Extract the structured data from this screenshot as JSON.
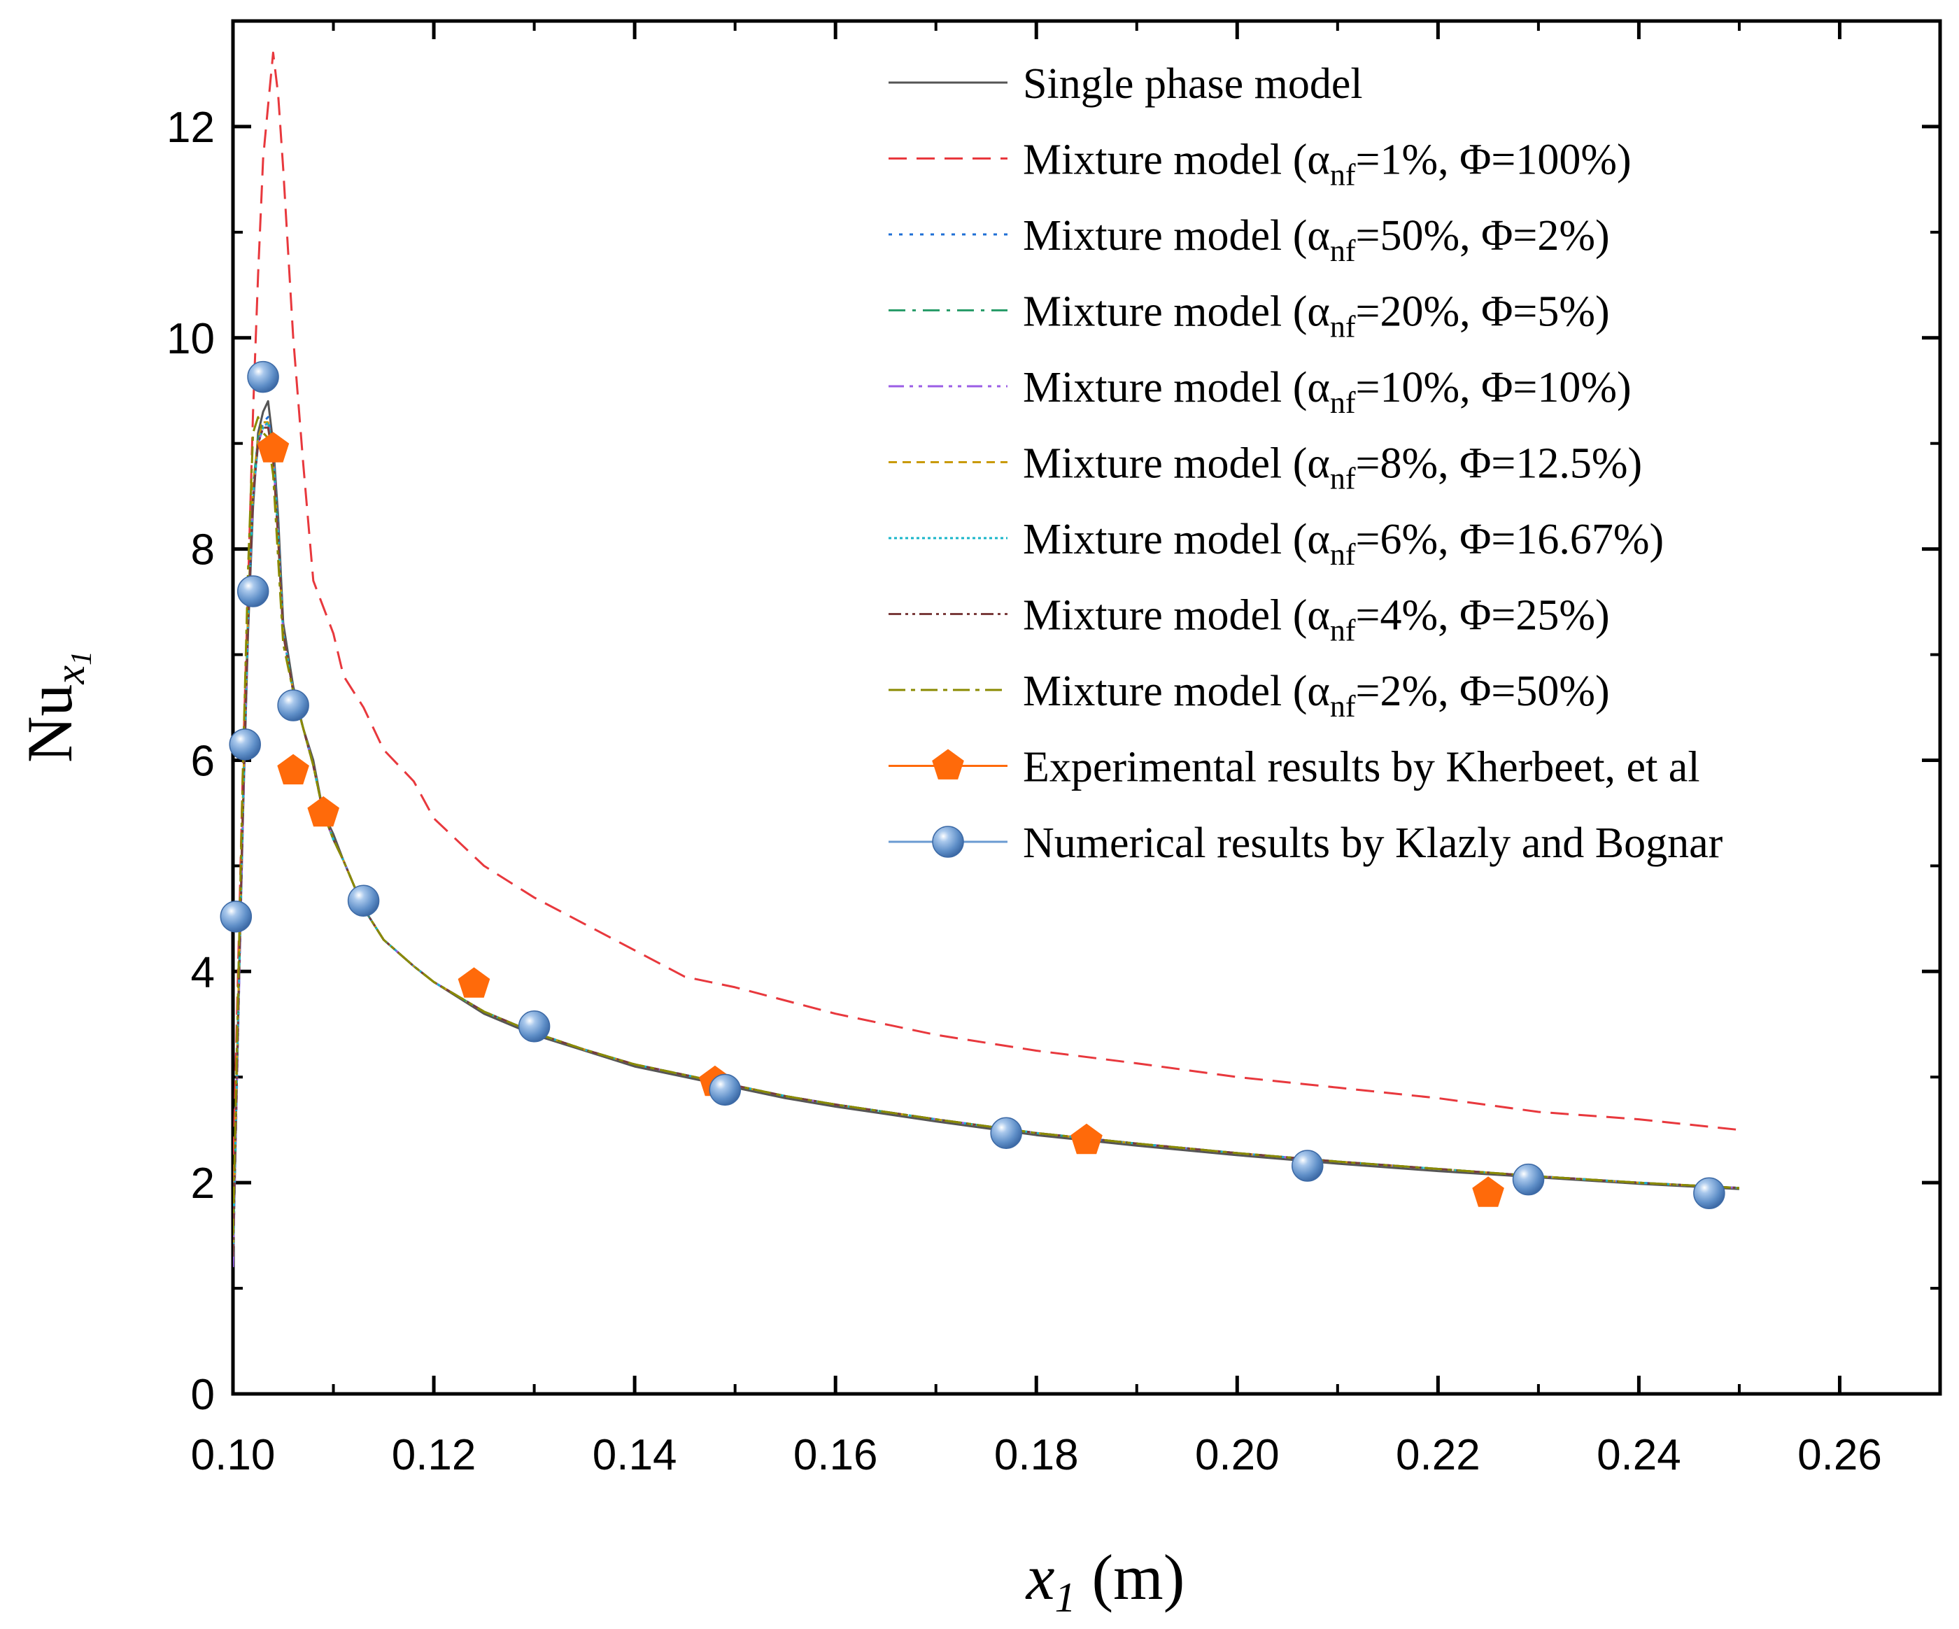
{
  "chart_data": {
    "type": "line",
    "title": "",
    "xlabel": {
      "main": "x",
      "sub": "1",
      "unit": " (m)"
    },
    "ylabel": {
      "main": "Nu",
      "sub": "x",
      "subsub": "1"
    },
    "xlim": [
      0.1,
      0.27
    ],
    "ylim": [
      0,
      13
    ],
    "x_ticks": [
      0.1,
      0.12,
      0.14,
      0.16,
      0.18,
      0.2,
      0.22,
      0.24,
      0.26
    ],
    "x_tick_labels": [
      "0.10",
      "0.12",
      "0.14",
      "0.16",
      "0.18",
      "0.20",
      "0.22",
      "0.24",
      "0.26"
    ],
    "y_ticks": [
      0,
      2,
      4,
      6,
      8,
      10,
      12
    ],
    "y_tick_labels": [
      "0",
      "2",
      "4",
      "6",
      "8",
      "10",
      "12"
    ],
    "legend_position": "top-right",
    "series": [
      {
        "name": "Single phase model",
        "color": "#555555",
        "dash": "",
        "marker": "none",
        "label": {
          "pre": "Single phase model",
          "sub": "",
          "post": ""
        },
        "x": [
          0.1,
          0.1005,
          0.101,
          0.1015,
          0.102,
          0.1025,
          0.103,
          0.1035,
          0.104,
          0.1045,
          0.105,
          0.106,
          0.107,
          0.108,
          0.109,
          0.11,
          0.111,
          0.113,
          0.115,
          0.118,
          0.12,
          0.125,
          0.13,
          0.135,
          0.14,
          0.145,
          0.15,
          0.155,
          0.16,
          0.17,
          0.18,
          0.19,
          0.2,
          0.21,
          0.22,
          0.23,
          0.24,
          0.25
        ],
        "y": [
          1.3,
          3.5,
          5.5,
          7.2,
          8.4,
          9.1,
          9.3,
          9.4,
          9.0,
          8.3,
          7.3,
          6.7,
          6.3,
          6.0,
          5.5,
          5.3,
          5.05,
          4.6,
          4.3,
          4.05,
          3.9,
          3.6,
          3.4,
          3.25,
          3.1,
          3.0,
          2.9,
          2.8,
          2.72,
          2.58,
          2.45,
          2.35,
          2.26,
          2.18,
          2.11,
          2.05,
          1.99,
          1.94
        ]
      },
      {
        "name": "Mixture model (αnf=1%, Φ=100%)",
        "color": "#e8383d",
        "dash": "26 14",
        "marker": "none",
        "label": {
          "pre": "Mixture model (α",
          "sub": "nf",
          "post": "=1%, Φ=100%)"
        },
        "x": [
          0.1,
          0.101,
          0.102,
          0.1025,
          0.103,
          0.1035,
          0.104,
          0.1045,
          0.105,
          0.106,
          0.107,
          0.108,
          0.11,
          0.111,
          0.113,
          0.115,
          0.118,
          0.12,
          0.125,
          0.13,
          0.135,
          0.14,
          0.145,
          0.15,
          0.16,
          0.17,
          0.18,
          0.19,
          0.2,
          0.21,
          0.22,
          0.23,
          0.24,
          0.25
        ],
        "y": [
          2.0,
          6.0,
          9.3,
          10.6,
          11.7,
          12.2,
          12.7,
          12.3,
          11.6,
          10.0,
          8.8,
          7.7,
          7.2,
          6.8,
          6.5,
          6.1,
          5.8,
          5.45,
          5.0,
          4.7,
          4.45,
          4.2,
          3.95,
          3.85,
          3.6,
          3.4,
          3.25,
          3.13,
          3.0,
          2.9,
          2.8,
          2.67,
          2.6,
          2.5
        ]
      },
      {
        "name": "Mixture model (αnf=50%, Φ=2%)",
        "color": "#1f6fd6",
        "dash": "5 10",
        "marker": "none",
        "label": {
          "pre": "Mixture model (α",
          "sub": "nf",
          "post": "=50%, Φ=2%)"
        },
        "x": [
          0.1,
          0.1005,
          0.101,
          0.1015,
          0.102,
          0.1025,
          0.103,
          0.1035,
          0.104,
          0.1045,
          0.105,
          0.106,
          0.107,
          0.108,
          0.109,
          0.11,
          0.111,
          0.113,
          0.115,
          0.118,
          0.12,
          0.125,
          0.13,
          0.135,
          0.14,
          0.145,
          0.15,
          0.155,
          0.16,
          0.17,
          0.18,
          0.19,
          0.2,
          0.21,
          0.22,
          0.23,
          0.24,
          0.25
        ],
        "y": [
          1.2,
          3.4,
          5.5,
          7.3,
          8.5,
          9.0,
          9.2,
          9.25,
          8.95,
          8.2,
          7.2,
          6.65,
          6.3,
          5.95,
          5.5,
          5.25,
          5.05,
          4.6,
          4.3,
          4.05,
          3.9,
          3.62,
          3.42,
          3.26,
          3.12,
          3.02,
          2.92,
          2.82,
          2.74,
          2.6,
          2.47,
          2.37,
          2.28,
          2.2,
          2.13,
          2.06,
          2.0,
          1.95
        ]
      },
      {
        "name": "Mixture model (αnf=20%, Φ=5%)",
        "color": "#2a9d6a",
        "dash": "24 10 5 10",
        "marker": "none",
        "label": {
          "pre": "Mixture model (α",
          "sub": "nf",
          "post": "=20%, Φ=5%)"
        },
        "x": [
          0.1,
          0.1005,
          0.101,
          0.1015,
          0.102,
          0.1025,
          0.103,
          0.1035,
          0.104,
          0.1045,
          0.105,
          0.106,
          0.107,
          0.108,
          0.109,
          0.11,
          0.111,
          0.113,
          0.115,
          0.118,
          0.12,
          0.125,
          0.13,
          0.135,
          0.14,
          0.145,
          0.15,
          0.155,
          0.16,
          0.17,
          0.18,
          0.19,
          0.2,
          0.21,
          0.22,
          0.23,
          0.24,
          0.25
        ],
        "y": [
          1.2,
          3.5,
          5.6,
          7.4,
          8.6,
          9.05,
          9.2,
          9.2,
          8.9,
          8.1,
          7.2,
          6.65,
          6.3,
          5.95,
          5.5,
          5.25,
          5.05,
          4.6,
          4.3,
          4.05,
          3.9,
          3.62,
          3.42,
          3.26,
          3.12,
          3.02,
          2.92,
          2.82,
          2.74,
          2.6,
          2.47,
          2.37,
          2.28,
          2.2,
          2.13,
          2.06,
          2.0,
          1.95
        ]
      },
      {
        "name": "Mixture model (αnf=10%, Φ=10%)",
        "color": "#9b5de5",
        "dash": "22 8 5 8 5 8",
        "marker": "none",
        "label": {
          "pre": "Mixture model (α",
          "sub": "nf",
          "post": "=10%, Φ=10%)"
        },
        "x": [
          0.1,
          0.1005,
          0.101,
          0.1015,
          0.102,
          0.1025,
          0.103,
          0.1035,
          0.104,
          0.1045,
          0.105,
          0.106,
          0.107,
          0.108,
          0.109,
          0.11,
          0.111,
          0.113,
          0.115,
          0.118,
          0.12,
          0.125,
          0.13,
          0.135,
          0.14,
          0.145,
          0.15,
          0.155,
          0.16,
          0.17,
          0.18,
          0.19,
          0.2,
          0.21,
          0.22,
          0.23,
          0.24,
          0.25
        ],
        "y": [
          1.2,
          3.4,
          5.5,
          7.3,
          8.5,
          9.0,
          9.15,
          9.2,
          8.9,
          8.1,
          7.2,
          6.65,
          6.3,
          5.95,
          5.5,
          5.25,
          5.05,
          4.6,
          4.3,
          4.05,
          3.9,
          3.62,
          3.42,
          3.26,
          3.12,
          3.02,
          2.92,
          2.82,
          2.74,
          2.6,
          2.47,
          2.37,
          2.28,
          2.2,
          2.13,
          2.06,
          2.0,
          1.95
        ]
      },
      {
        "name": "Mixture model (αnf=8%, Φ=12.5%)",
        "color": "#c99a06",
        "dash": "12 8",
        "marker": "none",
        "label": {
          "pre": "Mixture model (α",
          "sub": "nf",
          "post": "=8%, Φ=12.5%)"
        },
        "x": [
          0.1,
          0.1005,
          0.101,
          0.1015,
          0.102,
          0.1025,
          0.103,
          0.1035,
          0.104,
          0.1045,
          0.105,
          0.106,
          0.107,
          0.108,
          0.109,
          0.11,
          0.111,
          0.113,
          0.115,
          0.118,
          0.12,
          0.125,
          0.13,
          0.135,
          0.14,
          0.145,
          0.15,
          0.155,
          0.16,
          0.17,
          0.18,
          0.19,
          0.2,
          0.21,
          0.22,
          0.23,
          0.24,
          0.25
        ],
        "y": [
          1.4,
          3.6,
          5.7,
          7.4,
          8.6,
          9.05,
          9.2,
          9.2,
          8.85,
          8.1,
          7.2,
          6.65,
          6.3,
          5.95,
          5.5,
          5.25,
          5.05,
          4.6,
          4.3,
          4.05,
          3.9,
          3.62,
          3.42,
          3.26,
          3.12,
          3.02,
          2.92,
          2.82,
          2.74,
          2.6,
          2.47,
          2.37,
          2.28,
          2.2,
          2.13,
          2.06,
          2.0,
          1.95
        ]
      },
      {
        "name": "Mixture model (αnf=6%, Φ=16.67%)",
        "color": "#17b5c9",
        "dash": "4 4",
        "marker": "none",
        "label": {
          "pre": "Mixture model (α",
          "sub": "nf",
          "post": "=6%, Φ=16.67%)"
        },
        "x": [
          0.1,
          0.1005,
          0.101,
          0.1015,
          0.102,
          0.1025,
          0.103,
          0.1035,
          0.104,
          0.1045,
          0.105,
          0.106,
          0.107,
          0.108,
          0.109,
          0.11,
          0.111,
          0.113,
          0.115,
          0.118,
          0.12,
          0.125,
          0.13,
          0.135,
          0.14,
          0.145,
          0.15,
          0.155,
          0.16,
          0.17,
          0.18,
          0.19,
          0.2,
          0.21,
          0.22,
          0.23,
          0.24,
          0.25
        ],
        "y": [
          1.3,
          3.5,
          5.6,
          7.3,
          8.5,
          9.0,
          9.15,
          9.2,
          8.9,
          8.15,
          7.2,
          6.65,
          6.3,
          5.95,
          5.5,
          5.25,
          5.05,
          4.6,
          4.3,
          4.05,
          3.9,
          3.62,
          3.42,
          3.26,
          3.12,
          3.02,
          2.92,
          2.82,
          2.74,
          2.6,
          2.47,
          2.37,
          2.28,
          2.2,
          2.13,
          2.06,
          2.0,
          1.95
        ]
      },
      {
        "name": "Mixture model (αnf=4%, Φ=25%)",
        "color": "#7a3b3b",
        "dash": "18 6 4 6 4 6",
        "marker": "none",
        "label": {
          "pre": "Mixture model (α",
          "sub": "nf",
          "post": "=4%, Φ=25%)"
        },
        "x": [
          0.1,
          0.1005,
          0.101,
          0.1015,
          0.102,
          0.1025,
          0.103,
          0.1035,
          0.104,
          0.1045,
          0.105,
          0.106,
          0.107,
          0.108,
          0.109,
          0.11,
          0.111,
          0.113,
          0.115,
          0.118,
          0.12,
          0.125,
          0.13,
          0.135,
          0.14,
          0.145,
          0.15,
          0.155,
          0.16,
          0.17,
          0.18,
          0.19,
          0.2,
          0.21,
          0.22,
          0.23,
          0.24,
          0.25
        ],
        "y": [
          1.3,
          3.5,
          5.6,
          7.3,
          8.5,
          9.0,
          9.15,
          9.15,
          8.85,
          8.1,
          7.2,
          6.65,
          6.3,
          5.95,
          5.5,
          5.25,
          5.05,
          4.6,
          4.3,
          4.05,
          3.9,
          3.62,
          3.42,
          3.26,
          3.12,
          3.02,
          2.92,
          2.82,
          2.74,
          2.6,
          2.47,
          2.37,
          2.28,
          2.2,
          2.13,
          2.06,
          2.0,
          1.95
        ]
      },
      {
        "name": "Mixture model (αnf=2%, Φ=50%)",
        "color": "#8a8a00",
        "dash": "24 8 6 8",
        "marker": "none",
        "label": {
          "pre": "Mixture model (α",
          "sub": "nf",
          "post": "=2%, Φ=50%)"
        },
        "x": [
          0.1,
          0.1005,
          0.101,
          0.1015,
          0.102,
          0.1025,
          0.103,
          0.1035,
          0.104,
          0.1045,
          0.105,
          0.106,
          0.107,
          0.108,
          0.109,
          0.11,
          0.111,
          0.113,
          0.115,
          0.118,
          0.12,
          0.125,
          0.13,
          0.135,
          0.14,
          0.145,
          0.15,
          0.155,
          0.16,
          0.17,
          0.18,
          0.19,
          0.2,
          0.21,
          0.22,
          0.23,
          0.24,
          0.25
        ],
        "y": [
          1.5,
          3.8,
          6.0,
          7.8,
          9.1,
          9.25,
          9.1,
          9.05,
          8.7,
          7.9,
          7.1,
          6.65,
          6.3,
          5.95,
          5.5,
          5.25,
          5.05,
          4.6,
          4.3,
          4.05,
          3.9,
          3.62,
          3.42,
          3.26,
          3.12,
          3.02,
          2.92,
          2.82,
          2.74,
          2.6,
          2.47,
          2.37,
          2.28,
          2.2,
          2.13,
          2.06,
          2.0,
          1.95
        ]
      },
      {
        "name": "Experimental results by Kherbeet, et al",
        "color": "#ff6a0a",
        "dash": "",
        "marker": "pentagon",
        "line": false,
        "label": {
          "pre": "Experimental results by Kherbeet, et al",
          "sub": "",
          "post": ""
        },
        "x": [
          0.104,
          0.106,
          0.109,
          0.124,
          0.148,
          0.185,
          0.225
        ],
        "y": [
          8.95,
          5.9,
          5.5,
          3.88,
          2.95,
          2.4,
          1.9
        ]
      },
      {
        "name": "Numerical results by Klazly and Bognar",
        "color": "#6b9bd2",
        "dash": "",
        "marker": "sphere",
        "line": false,
        "label": {
          "pre": "Numerical results by Klazly and Bognar",
          "sub": "",
          "post": ""
        },
        "x": [
          0.1003,
          0.1012,
          0.102,
          0.103,
          0.106,
          0.113,
          0.13,
          0.149,
          0.177,
          0.207,
          0.229,
          0.247
        ],
        "y": [
          4.52,
          6.15,
          7.6,
          9.63,
          6.52,
          4.67,
          3.48,
          2.88,
          2.47,
          2.16,
          2.03,
          1.9
        ]
      }
    ]
  }
}
